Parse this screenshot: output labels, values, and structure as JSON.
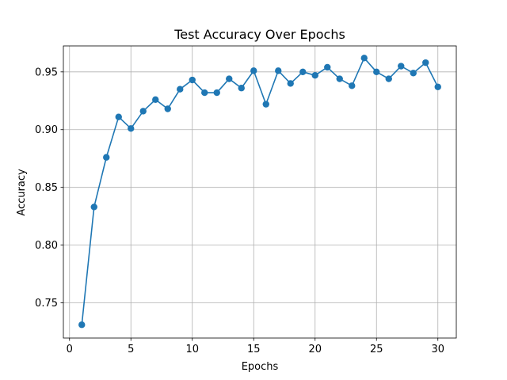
{
  "chart_data": {
    "type": "line",
    "title": "Test Accuracy Over Epochs",
    "xlabel": "Epochs",
    "ylabel": "Accuracy",
    "xlim": [
      -0.5,
      31.5
    ],
    "ylim": [
      0.7195,
      0.9725
    ],
    "xticks": [
      0,
      5,
      10,
      15,
      20,
      25,
      30
    ],
    "yticks": [
      0.75,
      0.8,
      0.85,
      0.9,
      0.95
    ],
    "xtick_labels": [
      "0",
      "5",
      "10",
      "15",
      "20",
      "25",
      "30"
    ],
    "ytick_labels": [
      "0.75",
      "0.80",
      "0.85",
      "0.90",
      "0.95"
    ],
    "grid": true,
    "colors": {
      "line": "#1f77b4",
      "marker": "#1f77b4",
      "grid": "#b0b0b0",
      "axes": "#000000"
    },
    "series": [
      {
        "x": [
          1,
          2,
          3,
          4,
          5,
          6,
          7,
          8,
          9,
          10,
          11,
          12,
          13,
          14,
          15,
          16,
          17,
          18,
          19,
          20,
          21,
          22,
          23,
          24,
          25,
          26,
          27,
          28,
          29,
          30
        ],
        "y": [
          0.731,
          0.833,
          0.876,
          0.911,
          0.901,
          0.916,
          0.926,
          0.918,
          0.935,
          0.943,
          0.932,
          0.932,
          0.944,
          0.936,
          0.951,
          0.922,
          0.951,
          0.94,
          0.95,
          0.947,
          0.954,
          0.944,
          0.938,
          0.962,
          0.95,
          0.944,
          0.955,
          0.949,
          0.958,
          0.937
        ]
      }
    ]
  }
}
